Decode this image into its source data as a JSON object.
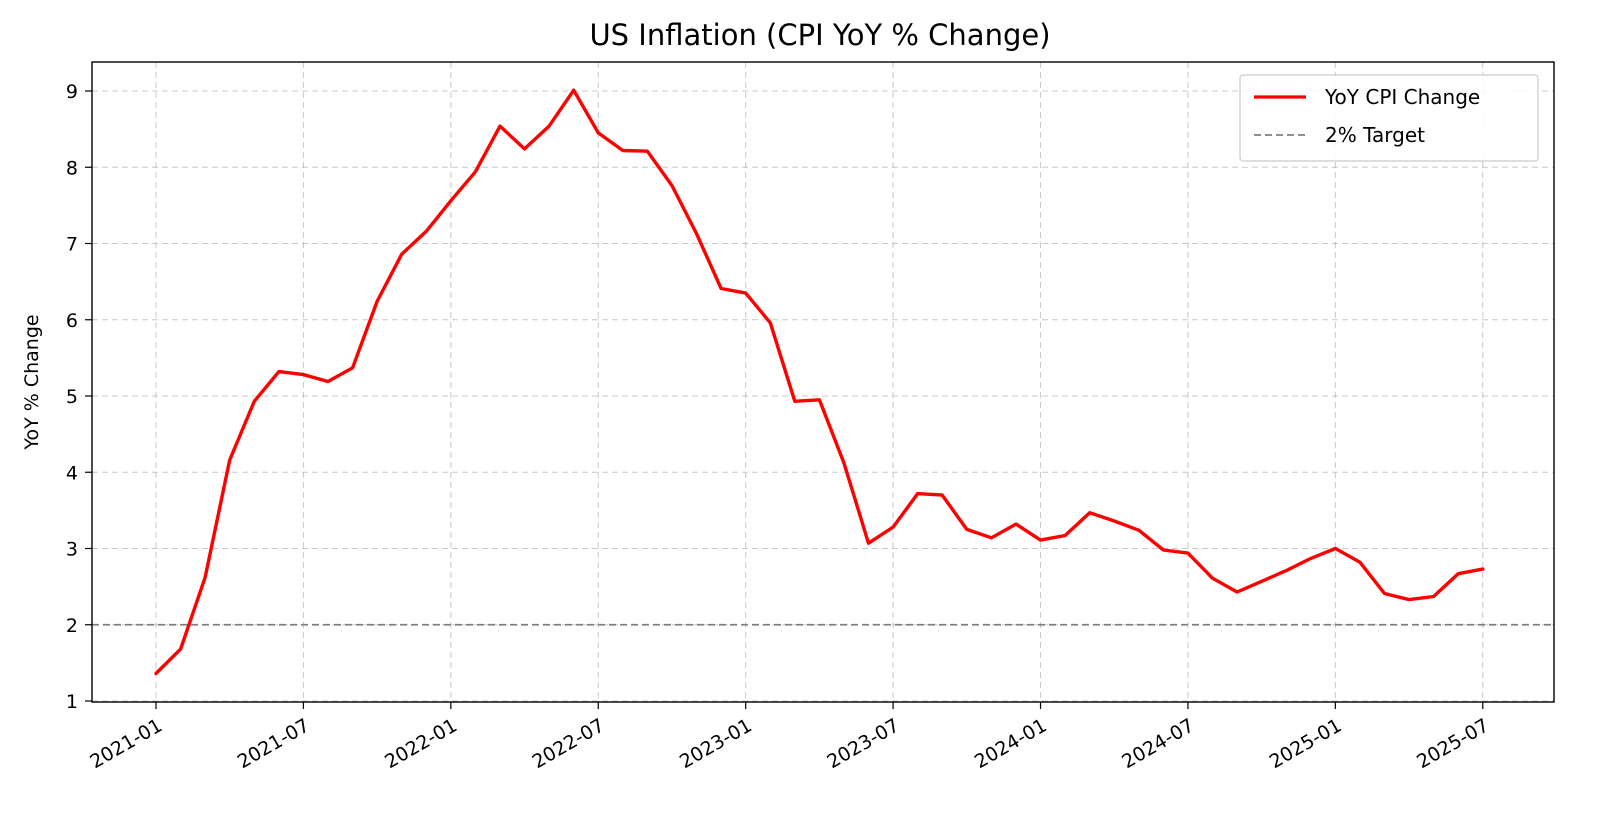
{
  "chart_data": {
    "type": "line",
    "title": "US Inflation (CPI YoY % Change)",
    "xlabel": "",
    "ylabel": "YoY % Change",
    "ylim": [
      1,
      9
    ],
    "yticks": [
      1,
      2,
      3,
      4,
      5,
      6,
      7,
      8,
      9
    ],
    "xtick_labels": [
      "2021-01",
      "2021-07",
      "2022-01",
      "2022-07",
      "2023-01",
      "2023-07",
      "2024-01",
      "2024-07",
      "2025-01",
      "2025-07"
    ],
    "grid": true,
    "legend_position": "top-right",
    "x": [
      "2021-01",
      "2021-02",
      "2021-03",
      "2021-04",
      "2021-05",
      "2021-06",
      "2021-07",
      "2021-08",
      "2021-09",
      "2021-10",
      "2021-11",
      "2021-12",
      "2022-01",
      "2022-02",
      "2022-03",
      "2022-04",
      "2022-05",
      "2022-06",
      "2022-07",
      "2022-08",
      "2022-09",
      "2022-10",
      "2022-11",
      "2022-12",
      "2023-01",
      "2023-02",
      "2023-03",
      "2023-04",
      "2023-05",
      "2023-06",
      "2023-07",
      "2023-08",
      "2023-09",
      "2023-10",
      "2023-11",
      "2023-12",
      "2024-01",
      "2024-02",
      "2024-03",
      "2024-04",
      "2024-05",
      "2024-06",
      "2024-07",
      "2024-08",
      "2024-09",
      "2024-10",
      "2024-11",
      "2024-12",
      "2025-01",
      "2025-02",
      "2025-03",
      "2025-04",
      "2025-05",
      "2025-06",
      "2025-07"
    ],
    "series": [
      {
        "name": "YoY CPI Change",
        "color": "#ff0000",
        "style": "solid",
        "values": [
          1.36,
          1.68,
          2.62,
          4.16,
          4.93,
          5.32,
          5.28,
          5.19,
          5.37,
          6.24,
          6.86,
          7.16,
          7.56,
          7.94,
          8.54,
          8.24,
          8.54,
          9.01,
          8.45,
          8.22,
          8.21,
          7.76,
          7.13,
          6.41,
          6.35,
          5.96,
          4.93,
          4.95,
          4.12,
          3.07,
          3.28,
          3.72,
          3.7,
          3.25,
          3.14,
          3.32,
          3.11,
          3.17,
          3.47,
          3.36,
          3.24,
          2.98,
          2.94,
          2.61,
          2.43,
          2.57,
          2.71,
          2.87,
          3.0,
          2.82,
          2.41,
          2.33,
          2.37,
          2.67,
          2.73
        ]
      },
      {
        "name": "2% Target",
        "color": "#808080",
        "style": "dashed",
        "constant": 2
      }
    ]
  }
}
